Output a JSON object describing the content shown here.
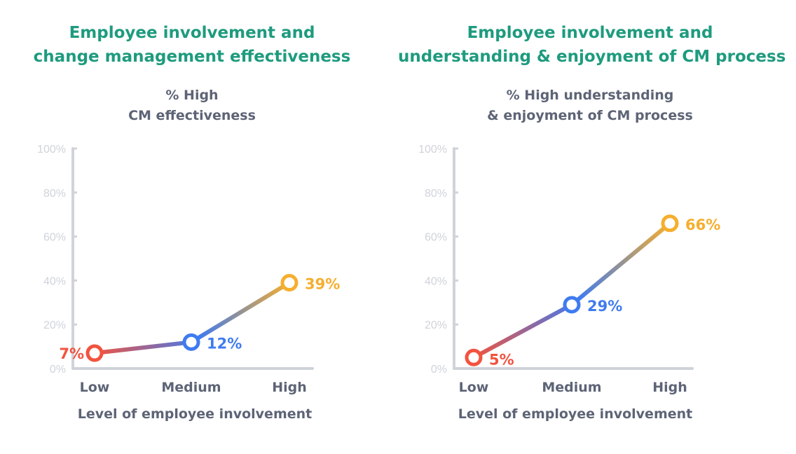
{
  "chart_data": [
    {
      "type": "line",
      "title": [
        "Employee involvement and",
        "change management effectiveness"
      ],
      "ylabel": [
        "% High",
        "CM effectiveness"
      ],
      "xlabel": "Level of employee involvement",
      "categories": [
        "Low",
        "Medium",
        "High"
      ],
      "values": [
        7,
        12,
        39
      ],
      "labels": [
        "7%",
        "12%",
        "39%"
      ],
      "point_colors": [
        "#f2533f",
        "#3f7bf0",
        "#f6ae2d"
      ],
      "label_sides": [
        "left",
        "right",
        "right"
      ],
      "ylim": [
        0,
        100
      ],
      "yticks": [
        0,
        20,
        40,
        60,
        80,
        100
      ],
      "ytick_labels": [
        "0%",
        "20%",
        "40%",
        "60%",
        "80%",
        "100%"
      ],
      "grid": false
    },
    {
      "type": "line",
      "title": [
        "Employee involvement and",
        "understanding & enjoyment of CM process"
      ],
      "ylabel": [
        "% High understanding",
        "& enjoyment of CM process"
      ],
      "xlabel": "Level of employee involvement",
      "categories": [
        "Low",
        "Medium",
        "High"
      ],
      "values": [
        5,
        29,
        66
      ],
      "labels": [
        "5%",
        "29%",
        "66%"
      ],
      "point_colors": [
        "#f2533f",
        "#3f7bf0",
        "#f6ae2d"
      ],
      "label_sides": [
        "below-right",
        "right",
        "right"
      ],
      "ylim": [
        0,
        100
      ],
      "yticks": [
        0,
        20,
        40,
        60,
        80,
        100
      ],
      "ytick_labels": [
        "0%",
        "20%",
        "40%",
        "60%",
        "80%",
        "100%"
      ],
      "grid": false
    }
  ]
}
